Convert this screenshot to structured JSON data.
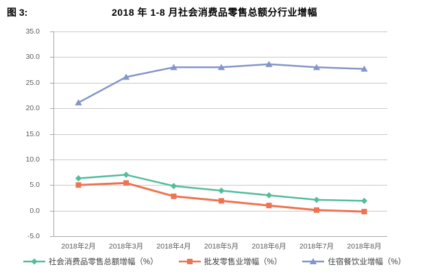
{
  "header": {
    "figure_label": "图 3:",
    "title": "2018 年 1-8 月社会消费品零售总额分行业增幅"
  },
  "chart_data": {
    "type": "line",
    "title": "2018 年 1-8 月社会消费品零售总额分行业增幅",
    "categories": [
      "2018年2月",
      "2018年3月",
      "2018年4月",
      "2018年5月",
      "2018年6月",
      "2018年7月",
      "2018年8月"
    ],
    "series": [
      {
        "name": "社会消费品零售总额增幅（%）",
        "marker": "diamond",
        "color": "#53BD9B",
        "values": [
          6.3,
          7.0,
          4.8,
          3.9,
          3.0,
          2.1,
          1.9
        ]
      },
      {
        "name": "批发零售业增幅（%）",
        "marker": "square",
        "color": "#EF7350",
        "values": [
          5.0,
          5.4,
          2.8,
          1.9,
          1.0,
          0.1,
          -0.2
        ]
      },
      {
        "name": "住宿餐饮业增幅（%）",
        "marker": "triangle",
        "color": "#8496C8",
        "values": [
          21.1,
          26.1,
          28.0,
          28.0,
          28.6,
          28.0,
          27.7
        ]
      }
    ],
    "ylim": [
      -5,
      35
    ],
    "ytick_step": 5,
    "ytick_labels": [
      "35.0",
      "30.0",
      "25.0",
      "20.0",
      "15.0",
      "10.0",
      "5.0",
      "0.0",
      "-5.0"
    ],
    "grid": true,
    "legend_position": "bottom"
  },
  "colors": {
    "gridline": "#C9C9C9",
    "axis_line": "#A6A6A6",
    "tick_label": "#595959",
    "legend_label": "#404040"
  }
}
